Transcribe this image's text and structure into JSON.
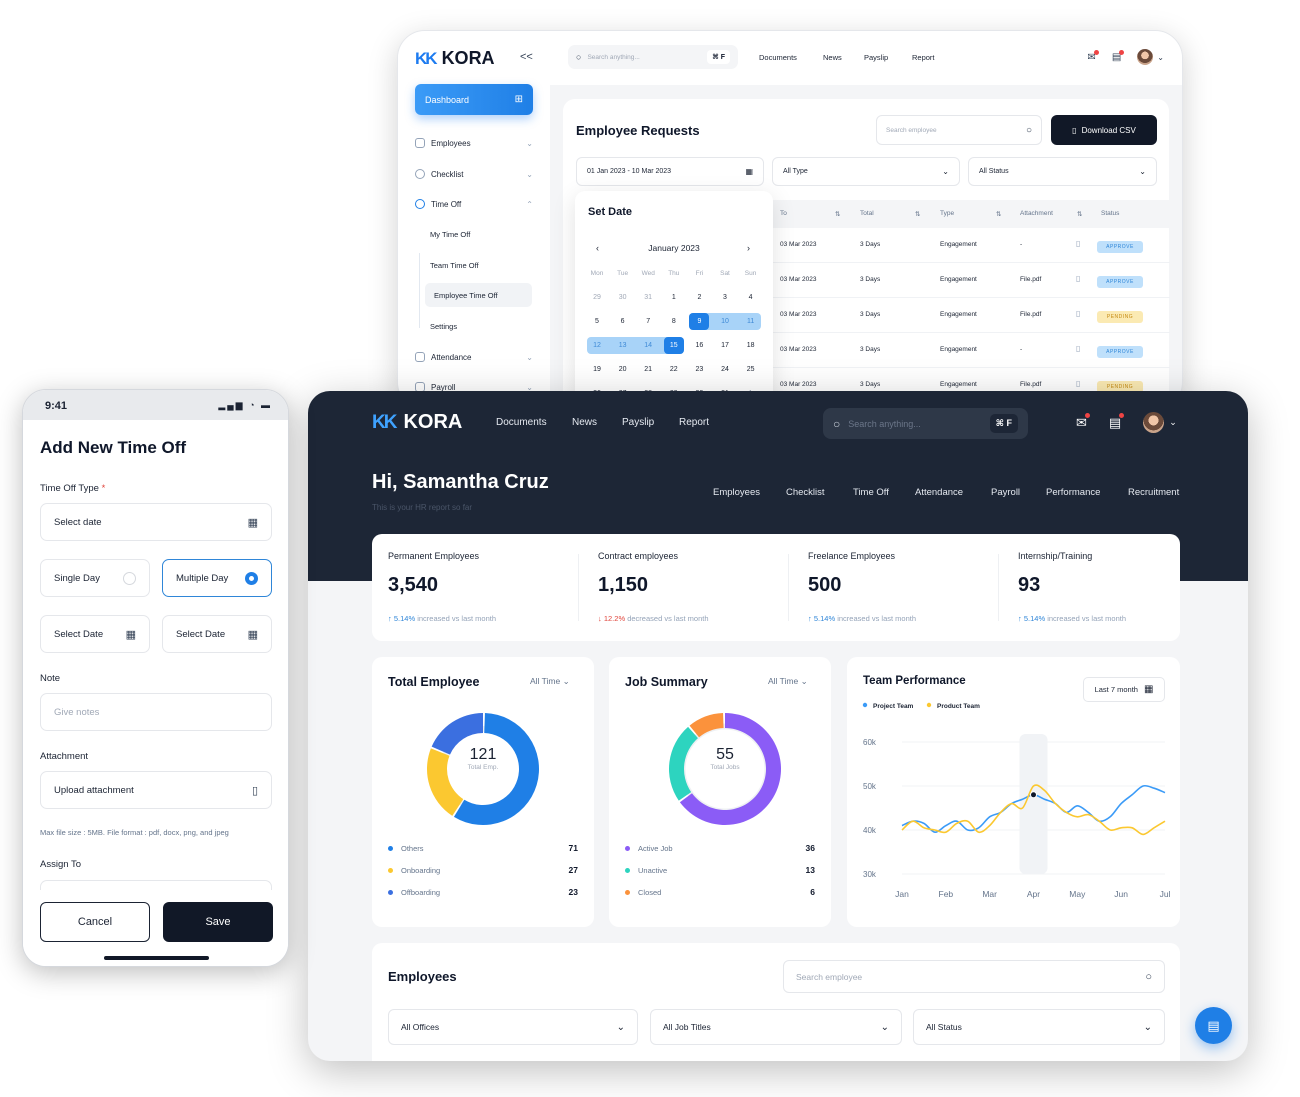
{
  "brand": {
    "name": "KORA",
    "accent": "#1f7fe6",
    "dark": "#1d2636"
  },
  "back_window": {
    "collapse_glyph": "<<",
    "sidebar": {
      "dashboard_label": "Dashboard",
      "items": [
        {
          "label": "Employees",
          "icon": "users-icon"
        },
        {
          "label": "Checklist",
          "icon": "checklist-icon"
        },
        {
          "label": "Time Off",
          "icon": "clock-icon"
        },
        {
          "label": "Attendance",
          "icon": "calendar-icon"
        },
        {
          "label": "Payroll",
          "icon": "wallet-icon"
        }
      ],
      "time_off_sub": [
        "My Time Off",
        "Team Time Off",
        "Employee Time Off",
        "Settings"
      ]
    },
    "search": {
      "placeholder": "Search anything...",
      "shortcut": "⌘ F"
    },
    "top_menu": [
      "Documents",
      "News",
      "Payslip",
      "Report"
    ],
    "requests": {
      "title": "Employee Requests",
      "search_placeholder": "Search employee",
      "download_label": "Download CSV",
      "date_range": "01 Jan 2023 - 10 Mar 2023",
      "type_filter": "All Type",
      "status_filter": "All Status",
      "columns": [
        "To",
        "Total",
        "Type",
        "Attachment",
        "Status"
      ],
      "rows": [
        {
          "to": "03 Mar 2023",
          "total": "3 Days",
          "type": "Engagement",
          "attachment": "-",
          "status": "APPROVE"
        },
        {
          "to": "03 Mar 2023",
          "total": "3 Days",
          "type": "Engagement",
          "attachment": "File.pdf",
          "status": "APPROVE"
        },
        {
          "to": "03 Mar 2023",
          "total": "3 Days",
          "type": "Engagement",
          "attachment": "File.pdf",
          "status": "PENDING"
        },
        {
          "to": "03 Mar 2023",
          "total": "3 Days",
          "type": "Engagement",
          "attachment": "-",
          "status": "APPROVE"
        },
        {
          "to": "03 Mar 2023",
          "total": "3 Days",
          "type": "Engagement",
          "attachment": "File.pdf",
          "status": "PENDING"
        }
      ]
    },
    "calendar": {
      "title": "Set Date",
      "month": "January 2023",
      "weekdays": [
        "Mon",
        "Tue",
        "Wed",
        "Thu",
        "Fri",
        "Sat",
        "Sun"
      ],
      "weeks": [
        [
          "29",
          "30",
          "31",
          "1",
          "2",
          "3",
          "4"
        ],
        [
          "5",
          "6",
          "7",
          "8",
          "9",
          "10",
          "11"
        ],
        [
          "12",
          "13",
          "14",
          "15",
          "16",
          "17",
          "18"
        ],
        [
          "19",
          "20",
          "21",
          "22",
          "23",
          "24",
          "25"
        ],
        [
          "26",
          "27",
          "28",
          "29",
          "30",
          "31",
          "1"
        ]
      ],
      "selected_start": "9",
      "selected_end": "15"
    }
  },
  "front_window": {
    "top_menu": [
      "Documents",
      "News",
      "Payslip",
      "Report"
    ],
    "search": {
      "placeholder": "Search anything...",
      "shortcut": "⌘ F"
    },
    "greeting": "Hi, Samantha Cruz",
    "subtitle": "This is your HR report so far",
    "tabs": [
      "Employees",
      "Checklist",
      "Time Off",
      "Attendance",
      "Payroll",
      "Performance",
      "Recruitment"
    ],
    "stats": [
      {
        "label": "Permanent Employees",
        "value": "3,540",
        "arrow": "↑",
        "pct": "5.14%",
        "note": "increased vs last month",
        "dir": "up"
      },
      {
        "label": "Contract employees",
        "value": "1,150",
        "arrow": "↓",
        "pct": "12.2%",
        "note": "decreased vs last month",
        "dir": "down"
      },
      {
        "label": "Freelance Employees",
        "value": "500",
        "arrow": "↑",
        "pct": "5.14%",
        "note": "increased vs last month",
        "dir": "up"
      },
      {
        "label": "Internship/Training",
        "value": "93",
        "arrow": "↑",
        "pct": "5.14%",
        "note": "increased vs last month",
        "dir": "up"
      }
    ],
    "total_employee": {
      "title": "Total Employee",
      "filter": "All Time",
      "center_value": "121",
      "center_label": "Total Emp.",
      "segments": [
        {
          "name": "Others",
          "value": 71,
          "color": "#1f7fe6"
        },
        {
          "name": "Onboarding",
          "value": 27,
          "color": "#fbc830"
        },
        {
          "name": "Offboarding",
          "value": 23,
          "color": "#3b6fe0"
        }
      ]
    },
    "job_summary": {
      "title": "Job Summary",
      "filter": "All Time",
      "center_value": "55",
      "center_label": "Total Jobs",
      "segments": [
        {
          "name": "Active Job",
          "value": 36,
          "color": "#8b5cf6"
        },
        {
          "name": "Unactive",
          "value": 13,
          "color": "#2dd4bf"
        },
        {
          "name": "Closed",
          "value": 6,
          "color": "#fb923c"
        }
      ]
    },
    "team_performance": {
      "title": "Team Performance",
      "filter": "Last 7 month"
    },
    "chart_data": {
      "type": "line",
      "title": "Team Performance",
      "categories": [
        "Jan",
        "Feb",
        "Mar",
        "Apr",
        "May",
        "Jun",
        "Jul"
      ],
      "x": [
        0,
        0.25,
        0.5,
        0.75,
        1,
        1.25,
        1.5,
        1.75,
        2,
        2.25,
        2.5,
        2.75,
        3,
        3.25,
        3.5,
        3.75,
        4,
        4.25,
        4.5,
        4.75,
        5,
        5.25,
        5.5,
        5.75,
        6
      ],
      "series": [
        {
          "name": "Project Team",
          "color": "#3b9bf7",
          "values": [
            41,
            42,
            41.5,
            39.5,
            41,
            42,
            40,
            40.5,
            43,
            44,
            46,
            47,
            48,
            47,
            46,
            44,
            45.5,
            44,
            42,
            43,
            46,
            48,
            50,
            49.5,
            48.5
          ]
        },
        {
          "name": "Product Team",
          "color": "#fbc830",
          "values": [
            40,
            42,
            40.5,
            40,
            39.5,
            41.5,
            42,
            39.5,
            41,
            44,
            46,
            45,
            50,
            49,
            46,
            44,
            43,
            43.5,
            42,
            40,
            40.5,
            40.5,
            39,
            40.5,
            42
          ]
        }
      ],
      "ylim": [
        30,
        60
      ],
      "yticks": [
        "60k",
        "50k",
        "40k",
        "30k"
      ],
      "highlight_category": "Apr",
      "legend": "top-left",
      "grid": true
    },
    "employees": {
      "title": "Employees",
      "search_placeholder": "Search employee",
      "filters": [
        "All Offices",
        "All Job Titles",
        "All Status"
      ]
    }
  },
  "phone": {
    "time": "9:41",
    "status_icons": "▂▄▆ ◔ ▬",
    "title": "Add New Time Off",
    "type_label": "Time Off Type",
    "required_mark": "*",
    "type_value": "Select date",
    "single_day": "Single Day",
    "multiple_day": "Multiple Day",
    "start_date": "Select Date",
    "end_date": "Select Date",
    "note_label": "Note",
    "note_placeholder": "Give notes",
    "attachment_label": "Attachment",
    "attachment_value": "Upload attachment",
    "hint": "Max file size : 5MB. File format : pdf, docx, png, and jpeg",
    "assign_label": "Assign To",
    "cancel_label": "Cancel",
    "save_label": "Save"
  }
}
